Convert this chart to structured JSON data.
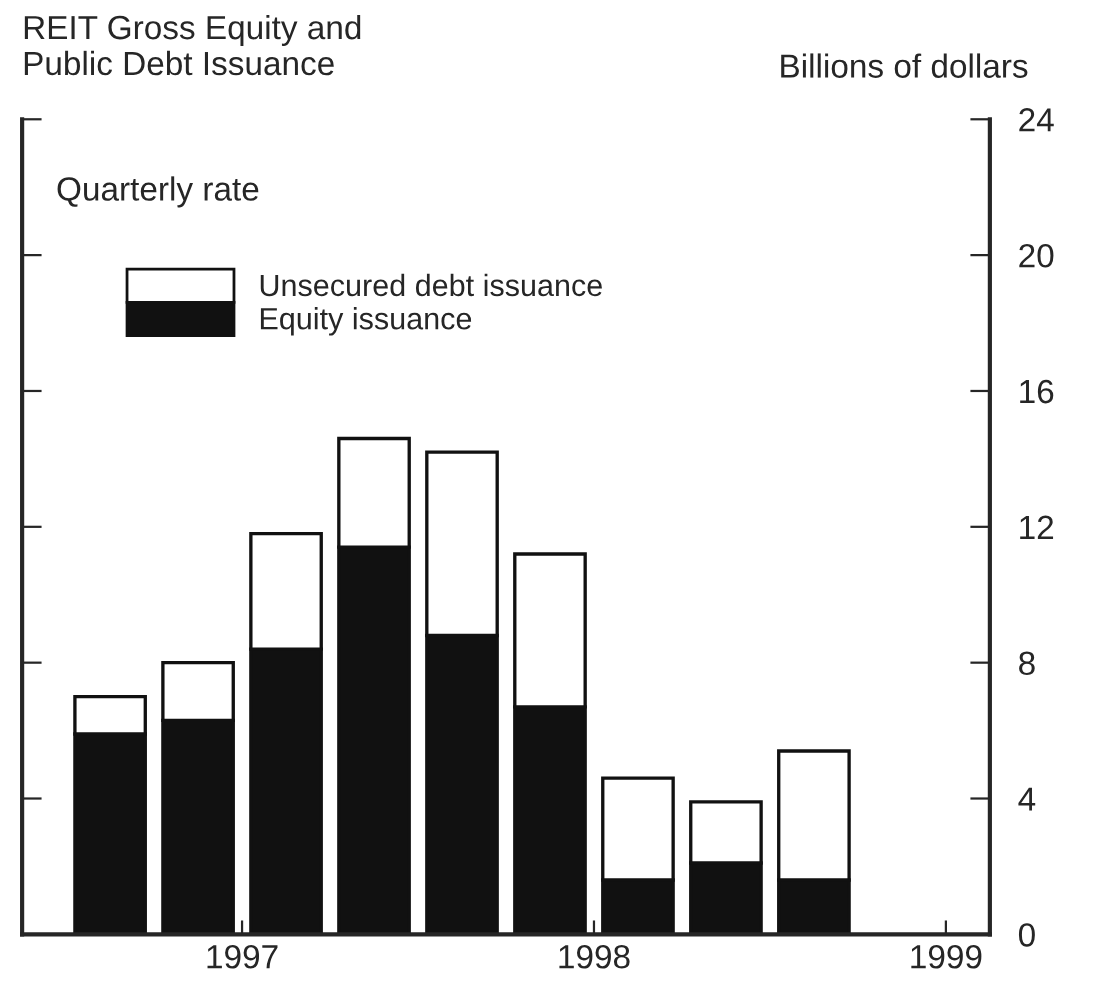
{
  "chart_data": {
    "type": "bar",
    "title": "REIT Gross Equity and\nPublic Debt Issuance",
    "ylabel": "Billions of dollars",
    "subtitle": "Quarterly rate",
    "x": [
      1996.625,
      1996.875,
      1997.125,
      1997.375,
      1997.625,
      1997.875,
      1998.125,
      1998.375,
      1998.625
    ],
    "stacked": true,
    "series": [
      {
        "name": "Equity issuance",
        "color": "#111111",
        "values": [
          5.9,
          6.3,
          8.4,
          11.4,
          8.8,
          6.7,
          1.6,
          2.1,
          1.6
        ]
      },
      {
        "name": "Unsecured debt issuance",
        "color": "#ffffff",
        "values": [
          1.1,
          1.7,
          3.4,
          3.2,
          5.4,
          4.5,
          3.0,
          1.8,
          3.8
        ]
      }
    ],
    "xlim": [
      1996.375,
      1999.125
    ],
    "xticks": [
      1997,
      1998,
      1999
    ],
    "ylim": [
      0,
      24
    ],
    "yticks": [
      0,
      4,
      8,
      12,
      16,
      20,
      24
    ],
    "legend": "top left",
    "grid": false
  }
}
